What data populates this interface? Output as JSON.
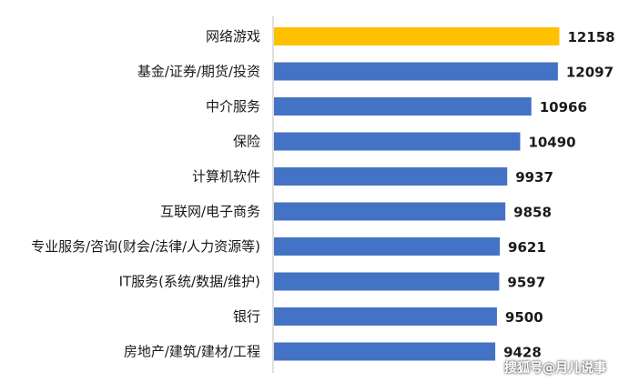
{
  "chart_data": {
    "type": "bar",
    "orientation": "horizontal",
    "categories": [
      "网络游戏",
      "基金/证券/期货/投资",
      "中介服务",
      "保险",
      "计算机软件",
      "互联网/电子商务",
      "专业服务/咨询(财会/法律/人力资源等)",
      "IT服务(系统/数据/维护)",
      "银行",
      "房地产/建筑/建材/工程"
    ],
    "values": [
      12158,
      12097,
      10966,
      10490,
      9937,
      9858,
      9621,
      9597,
      9500,
      9428
    ],
    "value_labels": [
      "12158",
      "12097",
      "10966",
      "10490",
      "9937",
      "9858",
      "9621",
      "9597",
      "9500",
      "9428"
    ],
    "xlim": [
      0,
      12800
    ],
    "highlight_index": 0,
    "colors": {
      "bar": "#4472C4",
      "highlight": "#FFC000",
      "axis": "#bfbfbf"
    },
    "grid": false,
    "legend": "none"
  },
  "watermark": "搜狐号@月儿说事"
}
